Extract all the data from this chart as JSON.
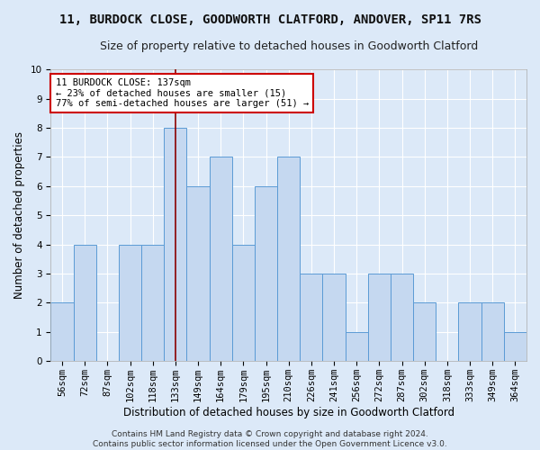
{
  "title": "11, BURDOCK CLOSE, GOODWORTH CLATFORD, ANDOVER, SP11 7RS",
  "subtitle": "Size of property relative to detached houses in Goodworth Clatford",
  "xlabel": "Distribution of detached houses by size in Goodworth Clatford",
  "ylabel": "Number of detached properties",
  "categories": [
    "56sqm",
    "72sqm",
    "87sqm",
    "102sqm",
    "118sqm",
    "133sqm",
    "149sqm",
    "164sqm",
    "179sqm",
    "195sqm",
    "210sqm",
    "226sqm",
    "241sqm",
    "256sqm",
    "272sqm",
    "287sqm",
    "302sqm",
    "318sqm",
    "333sqm",
    "349sqm",
    "364sqm"
  ],
  "values": [
    2,
    4,
    0,
    4,
    4,
    8,
    6,
    7,
    4,
    6,
    7,
    3,
    3,
    1,
    3,
    3,
    2,
    0,
    2,
    2,
    1
  ],
  "bar_color": "#c5d8f0",
  "bar_edge_color": "#5b9bd5",
  "highlight_bar_index": 5,
  "highlight_line_color": "#8b0000",
  "ylim": [
    0,
    10
  ],
  "yticks": [
    0,
    1,
    2,
    3,
    4,
    5,
    6,
    7,
    8,
    9,
    10
  ],
  "annotation_text": "11 BURDOCK CLOSE: 137sqm\n← 23% of detached houses are smaller (15)\n77% of semi-detached houses are larger (51) →",
  "annotation_box_color": "#ffffff",
  "annotation_box_edge_color": "#cc0000",
  "footer_text": "Contains HM Land Registry data © Crown copyright and database right 2024.\nContains public sector information licensed under the Open Government Licence v3.0.",
  "background_color": "#dce9f8",
  "grid_color": "#ffffff",
  "fig_background_color": "#dce9f8",
  "title_fontsize": 10,
  "subtitle_fontsize": 9,
  "axis_label_fontsize": 8.5,
  "tick_fontsize": 7.5,
  "annotation_fontsize": 7.5,
  "footer_fontsize": 6.5
}
